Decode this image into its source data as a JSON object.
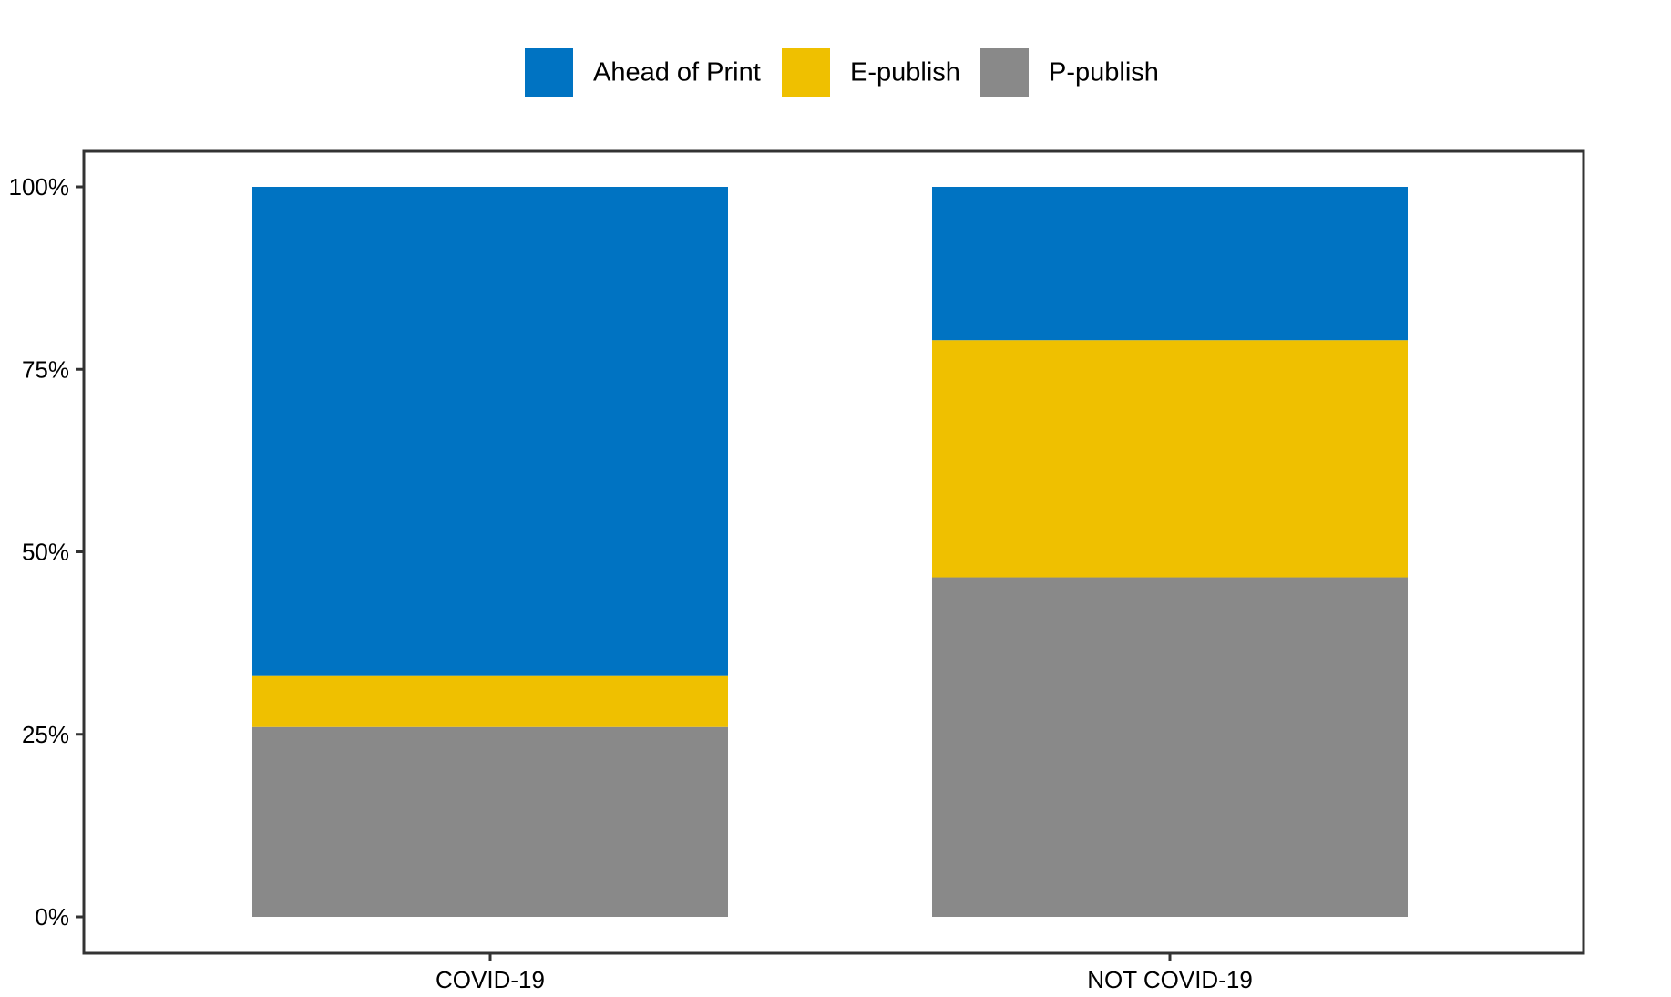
{
  "chart_data": {
    "type": "bar",
    "stacked": true,
    "categories": [
      "COVID-19",
      "NOT COVID-19"
    ],
    "series": [
      {
        "name": "P-publish",
        "color": "#898989",
        "values": [
          26,
          46.5
        ]
      },
      {
        "name": "E-publish",
        "color": "#EFC000",
        "values": [
          7,
          32.5
        ]
      },
      {
        "name": "Ahead of Print",
        "color": "#0073C2",
        "values": [
          67,
          21
        ]
      }
    ],
    "legend": {
      "position": "top",
      "order": [
        "Ahead of Print",
        "E-publish",
        "P-publish"
      ]
    },
    "title": "",
    "xlabel": "",
    "ylabel": "",
    "ylim": [
      0,
      100
    ],
    "yticks": [
      0,
      25,
      50,
      75,
      100
    ],
    "ytick_labels": [
      "0%",
      "25%",
      "50%",
      "75%",
      "100%"
    ],
    "grid": false
  }
}
